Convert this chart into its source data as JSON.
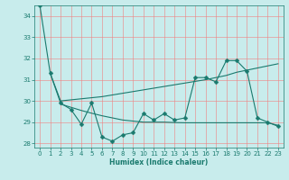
{
  "xlabel": "Humidex (Indice chaleur)",
  "bg_color": "#c8ecec",
  "line_color": "#1a7a6e",
  "grid_color": "#f08080",
  "xlim": [
    -0.5,
    23.5
  ],
  "ylim": [
    27.8,
    34.5
  ],
  "yticks": [
    28,
    29,
    30,
    31,
    32,
    33,
    34
  ],
  "xticks": [
    0,
    1,
    2,
    3,
    4,
    5,
    6,
    7,
    8,
    9,
    10,
    11,
    12,
    13,
    14,
    15,
    16,
    17,
    18,
    19,
    20,
    21,
    22,
    23
  ],
  "s1_x": [
    0,
    1,
    2,
    3,
    4,
    5,
    6,
    7,
    8,
    9,
    10,
    11,
    12,
    13,
    14,
    15,
    16,
    17,
    18,
    19,
    20,
    21,
    22,
    23
  ],
  "s1_y": [
    34.5,
    31.3,
    29.9,
    29.6,
    28.9,
    29.9,
    28.3,
    28.1,
    28.4,
    28.5,
    29.4,
    29.1,
    29.4,
    29.1,
    29.2,
    31.1,
    31.1,
    30.9,
    31.9,
    31.9,
    31.4,
    29.2,
    29.0,
    28.8
  ],
  "s2_x": [
    1,
    2,
    3,
    4,
    5,
    6,
    7,
    8,
    9,
    10,
    11,
    12,
    13,
    14,
    15,
    16,
    17,
    18,
    19,
    20,
    21,
    22,
    23
  ],
  "s2_y": [
    31.3,
    30.0,
    30.05,
    30.1,
    30.15,
    30.2,
    30.28,
    30.36,
    30.44,
    30.52,
    30.6,
    30.68,
    30.76,
    30.84,
    30.92,
    31.0,
    31.1,
    31.2,
    31.35,
    31.45,
    31.55,
    31.65,
    31.75
  ],
  "s3_x": [
    2,
    3,
    4,
    5,
    6,
    7,
    8,
    9,
    10,
    11,
    12,
    13,
    14,
    15,
    16,
    17,
    18,
    19,
    20,
    21,
    22,
    23
  ],
  "s3_y": [
    29.85,
    29.7,
    29.55,
    29.42,
    29.3,
    29.2,
    29.1,
    29.05,
    29.0,
    29.0,
    29.0,
    28.98,
    28.97,
    28.97,
    28.97,
    28.97,
    28.97,
    28.97,
    28.97,
    28.97,
    28.97,
    28.85
  ]
}
